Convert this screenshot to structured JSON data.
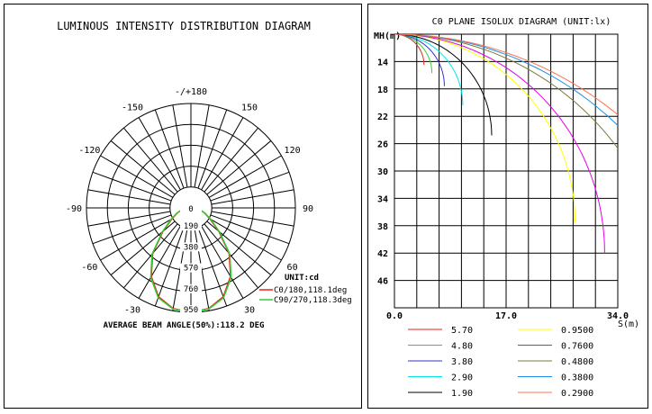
{
  "chart_data": [
    {
      "type": "polar",
      "title": "LUMINOUS INTENSITY DISTRIBUTION DIAGRAM",
      "angle_labels": [
        "-/+180",
        "-150",
        "150",
        "-120",
        "120",
        "-90",
        "90",
        "-60",
        "60",
        "-30",
        "30"
      ],
      "radial_labels": [
        "0",
        "190",
        "380",
        "570",
        "760",
        "950"
      ],
      "rmax": 950,
      "unit_label": "UNIT:cd",
      "series": [
        {
          "name": "C0/180,118.1deg",
          "color": "#e8221a",
          "angles": [
            -90,
            -80,
            -70,
            -60,
            -50,
            -40,
            -30,
            -20,
            -10,
            0,
            10,
            20,
            30,
            40,
            50,
            60,
            70,
            80,
            90
          ],
          "values": [
            0,
            70,
            130,
            200,
            330,
            540,
            720,
            860,
            930,
            950,
            930,
            860,
            720,
            540,
            330,
            200,
            130,
            70,
            0
          ]
        },
        {
          "name": "C90/270,118.3deg",
          "color": "#33cc33",
          "angles": [
            -90,
            -80,
            -70,
            -60,
            -50,
            -40,
            -30,
            -20,
            -10,
            0,
            10,
            20,
            30,
            40,
            50,
            60,
            70,
            80,
            90
          ],
          "values": [
            0,
            80,
            135,
            210,
            340,
            550,
            730,
            870,
            935,
            950,
            935,
            870,
            730,
            550,
            340,
            210,
            135,
            80,
            0
          ]
        }
      ],
      "footer": "AVERAGE BEAM ANGLE(50%):118.2 DEG"
    },
    {
      "type": "contour",
      "title": "C0 PLANE ISOLUX DIAGRAM (UNIT:lx)",
      "ylabel": "MH(m)",
      "xlabel": "S(m)",
      "y_ticks": [
        "14",
        "18",
        "22",
        "26",
        "30",
        "34",
        "38",
        "42",
        "46"
      ],
      "x_ticks": [
        "0.0",
        "17.0",
        "34.0"
      ],
      "xlim": [
        0,
        34
      ],
      "ylim": [
        10,
        50
      ],
      "series": [
        {
          "name": "5.70",
          "color": "#e8221a",
          "reach": 4.5
        },
        {
          "name": "4.80",
          "color": "#33cc33",
          "reach": 5.7
        },
        {
          "name": "3.80",
          "color": "#3333cc",
          "reach": 7.6
        },
        {
          "name": "2.90",
          "color": "#00e5e5",
          "reach": 10.4
        },
        {
          "name": "1.90",
          "color": "#000000",
          "reach": 14.8
        },
        {
          "name": "0.9500",
          "color": "#ffff00",
          "reach": 27.5
        },
        {
          "name": "0.7600",
          "color": "#e500e5",
          "reach": 32.0
        },
        {
          "name": "0.4800",
          "color": "#7a7a40",
          "reach": 43.0
        },
        {
          "name": "0.3800",
          "color": "#1e90e0",
          "reach": 50.0
        },
        {
          "name": "0.2900",
          "color": "#ff7050",
          "reach": 55.0
        }
      ]
    }
  ]
}
